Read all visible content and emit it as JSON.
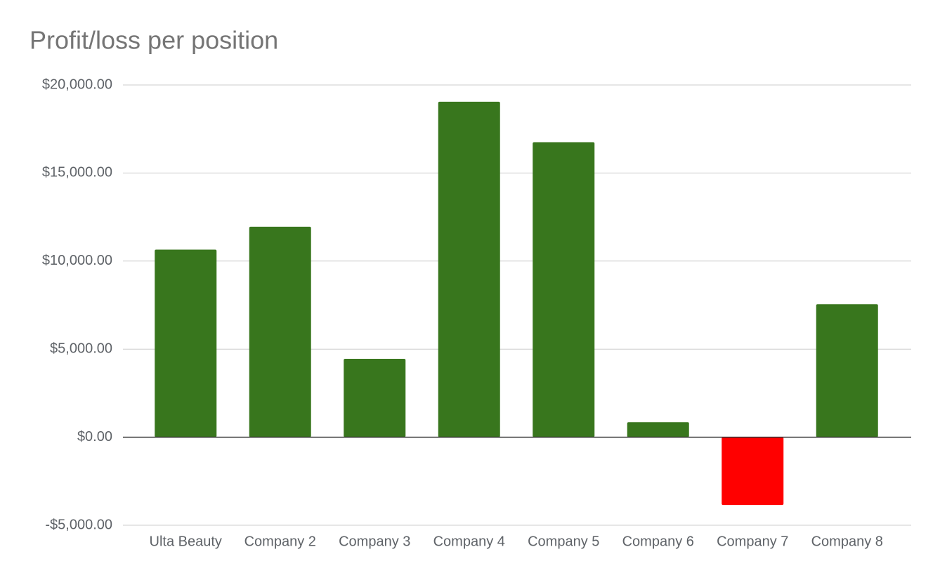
{
  "chart_data": {
    "type": "bar",
    "title": "Profit/loss per position",
    "categories": [
      "Ulta Beauty",
      "Company 2",
      "Company 3",
      "Company 4",
      "Company 5",
      "Company 6",
      "Company 7",
      "Company 8"
    ],
    "values": [
      10650,
      11950,
      4450,
      19050,
      16750,
      850,
      -3850,
      7550
    ],
    "colors": [
      "#38761d",
      "#38761d",
      "#38761d",
      "#38761d",
      "#38761d",
      "#38761d",
      "#ff0000",
      "#38761d"
    ],
    "ylim": [
      -5000,
      20000
    ],
    "yticks": [
      {
        "value": -5000,
        "label": "-$5,000.00"
      },
      {
        "value": 0,
        "label": "$0.00"
      },
      {
        "value": 5000,
        "label": "$5,000.00"
      },
      {
        "value": 10000,
        "label": "$10,000.00"
      },
      {
        "value": 15000,
        "label": "$15,000.00"
      },
      {
        "value": 20000,
        "label": "$20,000.00"
      }
    ],
    "grid": true
  }
}
